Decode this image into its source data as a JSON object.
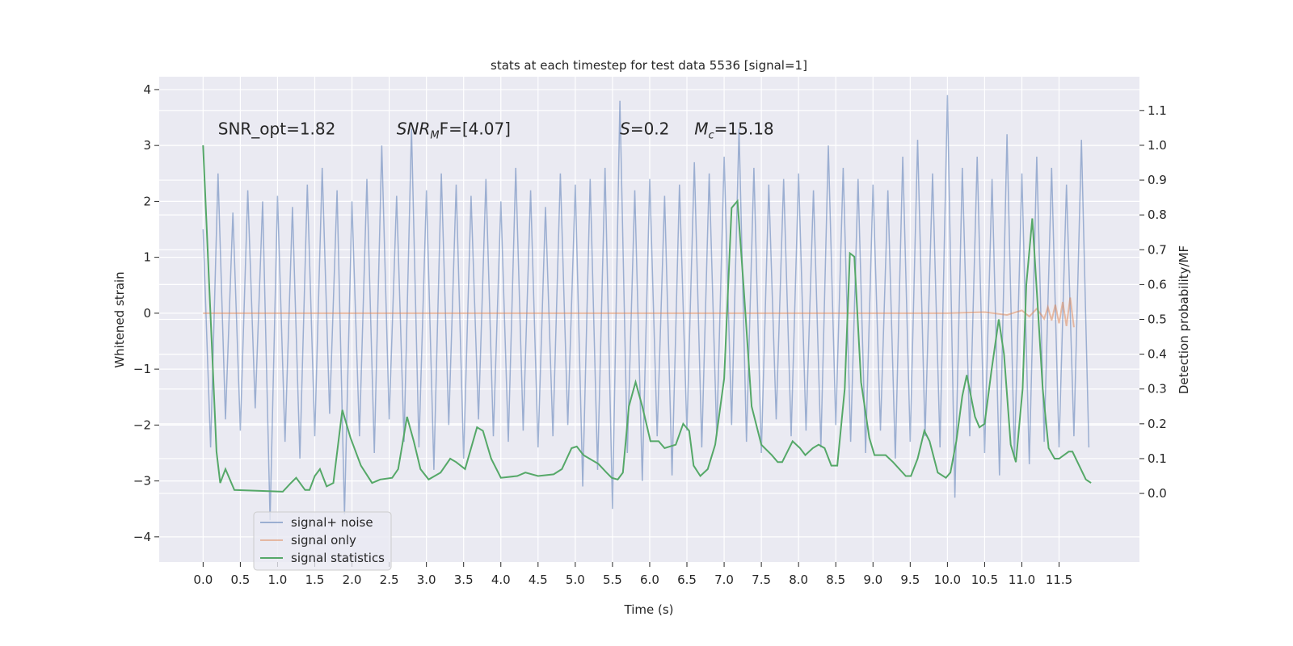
{
  "chart_data": {
    "type": "line",
    "title": "stats at each timestep for test data 5536 [signal=1]",
    "xlabel": "Time (s)",
    "ylabel": "Whitened strain",
    "y2label": "Detection probability/MF",
    "xlim": [
      -0.59,
      12.58
    ],
    "ylim": [
      -4.45,
      4.23
    ],
    "y2lim": [
      -0.197,
      1.197
    ],
    "xticks": [
      {
        "value": 0,
        "label": "0.0"
      },
      0.5,
      {
        "value": 1,
        "label": "1.0"
      },
      1.5,
      {
        "value": 2,
        "label": "2.0"
      },
      2.5,
      {
        "value": 3,
        "label": "3.0"
      },
      3.5,
      {
        "value": 4,
        "label": "4.0"
      },
      4.5,
      {
        "value": 5,
        "label": "5.0"
      },
      5.5,
      {
        "value": 6,
        "label": "6.0"
      },
      6.5,
      {
        "value": 7,
        "label": "7.0"
      },
      7.5,
      {
        "value": 8,
        "label": "8.0"
      },
      8.5,
      {
        "value": 9,
        "label": "9.0"
      },
      9.5,
      {
        "value": 10,
        "label": "10.0"
      },
      10.5,
      {
        "value": 11,
        "label": "11.0"
      },
      11.5
    ],
    "yticks": [
      {
        "value": -4,
        "label": "−4"
      },
      {
        "value": -3,
        "label": "−3"
      },
      {
        "value": -2,
        "label": "−2"
      },
      {
        "value": -1,
        "label": "−1"
      },
      0,
      1,
      2,
      3,
      4
    ],
    "y2ticks": [
      {
        "value": 0,
        "label": "0.0"
      },
      0.1,
      0.2,
      0.3,
      0.4,
      0.5,
      0.6,
      0.7,
      0.8,
      0.9,
      {
        "value": 1,
        "label": "1.0"
      },
      1.1
    ],
    "grid": true,
    "background": "#eaeaf2",
    "legend_loc": "lower left",
    "annotations": [
      {
        "text": "SNR_opt=1.82",
        "x": 0.2,
        "y": 3.2
      },
      {
        "base": "SNR",
        "sub": "M",
        "rest": "F=[4.07]",
        "x": 2.6,
        "y": 3.2
      },
      {
        "base": "S",
        "rest": "=0.2",
        "x": 5.6,
        "y": 3.2
      },
      {
        "base": "M",
        "sub": "c",
        "rest": "=15.18",
        "x": 6.6,
        "y": 3.2
      }
    ],
    "series": [
      {
        "name": "signal+ noise",
        "color": "#4c72b0",
        "opacity": 0.5,
        "x": [
          0,
          0.1,
          0.2,
          0.3,
          0.4,
          0.5,
          0.6,
          0.7,
          0.8,
          0.9,
          1,
          1.1,
          1.2,
          1.3,
          1.4,
          1.5,
          1.6,
          1.7,
          1.8,
          1.9,
          2,
          2.1,
          2.2,
          2.3,
          2.4,
          2.5,
          2.6,
          2.7,
          2.8,
          2.9,
          3,
          3.1,
          3.2,
          3.3,
          3.4,
          3.5,
          3.6,
          3.7,
          3.8,
          3.9,
          4,
          4.1,
          4.2,
          4.3,
          4.4,
          4.5,
          4.6,
          4.7,
          4.8,
          4.9,
          5,
          5.1,
          5.2,
          5.3,
          5.4,
          5.5,
          5.6,
          5.7,
          5.8,
          5.9,
          6,
          6.1,
          6.2,
          6.3,
          6.4,
          6.5,
          6.6,
          6.7,
          6.8,
          6.9,
          7,
          7.1,
          7.2,
          7.3,
          7.4,
          7.5,
          7.6,
          7.7,
          7.8,
          7.9,
          8,
          8.1,
          8.2,
          8.3,
          8.4,
          8.5,
          8.6,
          8.7,
          8.8,
          8.9,
          9,
          9.1,
          9.2,
          9.3,
          9.4,
          9.5,
          9.6,
          9.7,
          9.8,
          9.9,
          10,
          10.1,
          10.2,
          10.3,
          10.4,
          10.5,
          10.6,
          10.7,
          10.8,
          10.9,
          11,
          11.1,
          11.2,
          11.3,
          11.4,
          11.5,
          11.6,
          11.7,
          11.8,
          11.9
        ],
        "values": [
          1.5,
          -2.4,
          2.5,
          -1.9,
          1.8,
          -2.1,
          2.2,
          -1.7,
          2.0,
          -3.7,
          2.1,
          -2.3,
          1.9,
          -2.6,
          2.3,
          -2.2,
          2.6,
          -1.8,
          2.2,
          -3.6,
          2.0,
          -2.2,
          2.4,
          -2.5,
          3.0,
          -1.9,
          2.1,
          -2.3,
          3.3,
          -2.4,
          2.2,
          -2.8,
          2.5,
          -2.0,
          2.3,
          -2.6,
          2.1,
          -1.9,
          2.4,
          -2.2,
          2.0,
          -2.3,
          2.6,
          -2.1,
          2.2,
          -2.4,
          1.9,
          -2.2,
          2.5,
          -2.0,
          2.3,
          -3.1,
          2.4,
          -2.8,
          2.6,
          -3.5,
          3.8,
          -2.5,
          2.2,
          -3.0,
          2.4,
          -2.2,
          2.1,
          -2.9,
          2.3,
          -2.1,
          2.7,
          -2.4,
          2.5,
          -2.2,
          2.8,
          -2.0,
          3.3,
          -2.3,
          2.6,
          -2.5,
          2.3,
          -1.9,
          2.4,
          -2.2,
          2.5,
          -2.1,
          2.2,
          -2.4,
          3.0,
          -2.0,
          2.6,
          -2.3,
          2.4,
          -2.5,
          2.3,
          -2.1,
          2.2,
          -2.6,
          2.8,
          -2.3,
          3.1,
          -2.2,
          2.5,
          -2.4,
          3.9,
          -3.3,
          2.6,
          -2.2,
          2.8,
          -2.5,
          2.4,
          -2.9,
          3.2,
          -2.6,
          2.5,
          -2.7,
          2.8,
          -2.3,
          2.6,
          -2.4,
          2.3,
          -2.2,
          3.1,
          -2.4
        ]
      },
      {
        "name": "signal only",
        "color": "#dd8452",
        "opacity": 0.5,
        "x": [
          0,
          10,
          10.5,
          10.8,
          11,
          11.1,
          11.2,
          11.3,
          11.35,
          11.4,
          11.45,
          11.5,
          11.55,
          11.6,
          11.65,
          11.7
        ],
        "values": [
          0,
          0,
          0.02,
          -0.03,
          0.05,
          -0.06,
          0.08,
          -0.1,
          0.11,
          -0.13,
          0.15,
          -0.18,
          0.2,
          -0.23,
          0.28,
          -0.25
        ]
      },
      {
        "name": "signal statistics",
        "color": "#55a868",
        "opacity": 1,
        "axis": "y2",
        "x": [
          0,
          0.18,
          0.23,
          0.3,
          0.42,
          1.07,
          1.18,
          1.25,
          1.37,
          1.43,
          1.5,
          1.57,
          1.66,
          1.75,
          1.87,
          1.98,
          2.12,
          2.27,
          2.38,
          2.54,
          2.62,
          2.74,
          2.83,
          2.92,
          3.03,
          3.19,
          3.32,
          3.4,
          3.52,
          3.68,
          3.76,
          3.87,
          4,
          4.22,
          4.33,
          4.5,
          4.71,
          4.82,
          4.95,
          5.02,
          5.11,
          5.31,
          5.42,
          5.49,
          5.57,
          5.64,
          5.72,
          5.81,
          5.9,
          6.01,
          6.12,
          6.2,
          6.35,
          6.45,
          6.53,
          6.59,
          6.68,
          6.78,
          6.88,
          7,
          7.1,
          7.18,
          7.26,
          7.37,
          7.5,
          7.64,
          7.72,
          7.78,
          7.92,
          8.02,
          8.09,
          8.19,
          8.27,
          8.35,
          8.44,
          8.52,
          8.62,
          8.69,
          8.75,
          8.84,
          8.95,
          9.02,
          9.17,
          9.27,
          9.44,
          9.51,
          9.6,
          9.69,
          9.76,
          9.87,
          9.98,
          10.04,
          10.12,
          10.2,
          10.26,
          10.37,
          10.43,
          10.5,
          10.59,
          10.69,
          10.76,
          10.85,
          10.92,
          11.01,
          11.06,
          11.14,
          11.21,
          11.28,
          11.36,
          11.44,
          11.5,
          11.63,
          11.68,
          11.77,
          11.86,
          11.93
        ],
        "values": [
          1.0,
          0.12,
          0.03,
          0.07,
          0.01,
          0.005,
          0.03,
          0.045,
          0.01,
          0.01,
          0.05,
          0.07,
          0.02,
          0.03,
          0.24,
          0.16,
          0.08,
          0.03,
          0.04,
          0.045,
          0.07,
          0.22,
          0.15,
          0.07,
          0.04,
          0.06,
          0.1,
          0.09,
          0.07,
          0.19,
          0.18,
          0.1,
          0.045,
          0.05,
          0.06,
          0.05,
          0.055,
          0.07,
          0.13,
          0.135,
          0.11,
          0.085,
          0.06,
          0.045,
          0.04,
          0.06,
          0.25,
          0.32,
          0.25,
          0.15,
          0.15,
          0.13,
          0.14,
          0.2,
          0.18,
          0.08,
          0.05,
          0.07,
          0.14,
          0.33,
          0.82,
          0.84,
          0.6,
          0.25,
          0.14,
          0.11,
          0.09,
          0.09,
          0.15,
          0.13,
          0.11,
          0.13,
          0.14,
          0.13,
          0.08,
          0.08,
          0.3,
          0.69,
          0.68,
          0.32,
          0.16,
          0.11,
          0.11,
          0.09,
          0.05,
          0.05,
          0.1,
          0.18,
          0.15,
          0.06,
          0.045,
          0.06,
          0.15,
          0.28,
          0.34,
          0.22,
          0.19,
          0.2,
          0.35,
          0.5,
          0.4,
          0.14,
          0.09,
          0.3,
          0.6,
          0.79,
          0.55,
          0.3,
          0.13,
          0.1,
          0.1,
          0.12,
          0.12,
          0.08,
          0.04,
          0.03
        ]
      }
    ]
  }
}
